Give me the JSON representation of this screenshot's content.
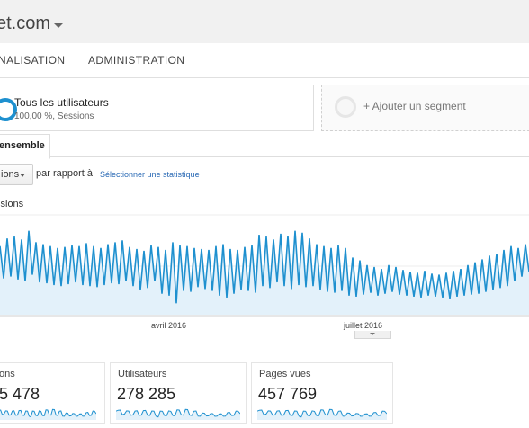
{
  "header": {
    "site_title": "et.com"
  },
  "nav": {
    "items": [
      "NALISATION",
      "ADMINISTRATION"
    ]
  },
  "segments": {
    "active": {
      "title": "Tous les utilisateurs",
      "subtitle": "100,00 %, Sessions"
    },
    "add_label": "+ Ajouter un segment"
  },
  "tabs": {
    "active_label": "ensemble"
  },
  "controls": {
    "metric_label": "ions",
    "compare_label": "par rapport à",
    "select_stat_link": "Sélectionner une statistique"
  },
  "chart_data": {
    "type": "line",
    "legend": "ssions",
    "x_ticks": [
      "avril 2016",
      "juillet 2016"
    ],
    "grid": true,
    "colors": {
      "line": "#1e90cf",
      "fill": "#e3f1fa"
    },
    "series": [
      {
        "values": [
          72,
          38,
          80,
          40,
          82,
          37,
          79,
          35,
          88,
          42,
          76,
          34,
          74,
          33,
          72,
          31,
          70,
          30,
          71,
          32,
          73,
          34,
          72,
          31,
          75,
          30,
          72,
          29,
          70,
          31,
          74,
          33,
          76,
          32,
          78,
          35,
          71,
          30,
          69,
          26,
          67,
          28,
          73,
          35,
          71,
          22,
          68,
          20,
          76,
          12,
          73,
          25,
          72,
          24,
          70,
          29,
          69,
          27,
          68,
          25,
          72,
          20,
          74,
          18,
          69,
          22,
          68,
          26,
          71,
          25,
          73,
          23,
          84,
          30,
          82,
          28,
          79,
          34,
          85,
          30,
          83,
          27,
          88,
          31,
          86,
          29,
          80,
          30,
          74,
          26,
          72,
          24,
          70,
          23,
          73,
          25,
          70,
          20,
          60,
          19,
          57,
          21,
          52,
          23,
          50,
          20,
          48,
          22,
          52,
          24,
          50,
          21,
          47,
          20,
          45,
          19,
          44,
          18,
          46,
          20,
          43,
          19,
          42,
          18,
          44,
          17,
          46,
          19,
          48,
          20,
          52,
          21,
          55,
          22,
          58,
          24,
          62,
          26,
          64,
          28,
          68,
          30,
          72,
          35,
          70,
          40,
          74,
          45
        ]
      }
    ]
  },
  "stats": [
    {
      "label": "ons",
      "value": "5 478"
    },
    {
      "label": "Utilisateurs",
      "value": "278 285"
    },
    {
      "label": "Pages vues",
      "value": "457 769"
    }
  ]
}
